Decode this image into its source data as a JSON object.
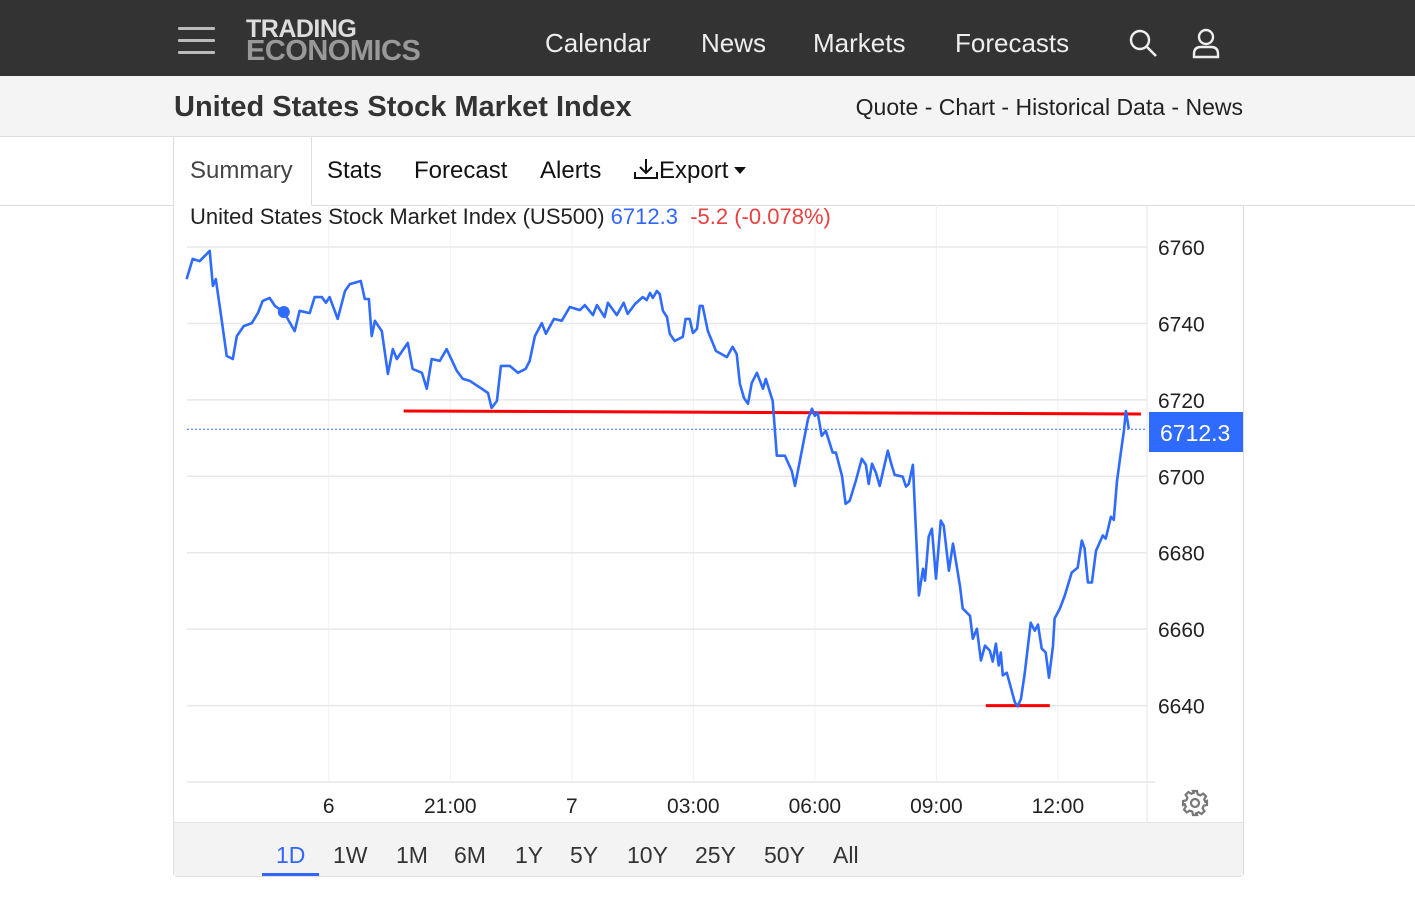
{
  "nav": {
    "logo_line1": "TRADING",
    "logo_line2": "ECONOMICS",
    "links": [
      "Calendar",
      "News",
      "Markets",
      "Forecasts"
    ]
  },
  "subheader": {
    "title": "United States Stock Market Index",
    "links": [
      "Quote",
      "Chart",
      "Historical Data",
      "News"
    ],
    "sep": " - "
  },
  "tabs": {
    "summary": "Summary",
    "stats": "Stats",
    "forecast": "Forecast",
    "alerts": "Alerts",
    "export": "Export"
  },
  "chart_header": {
    "name": "United States Stock Market Index (US500)",
    "price": "6712.3",
    "change": "-5.2",
    "change_pct": "(-0.078%)"
  },
  "last_price_label": "6712.3",
  "ranges": [
    "1D",
    "1W",
    "1M",
    "6M",
    "1Y",
    "5Y",
    "10Y",
    "25Y",
    "50Y",
    "All"
  ],
  "active_range": "1D",
  "colors": {
    "line": "#2f6bff",
    "trend": "#ff0000",
    "nav_bg": "#333333"
  },
  "chart_data": {
    "type": "line",
    "title": "United States Stock Market Index (US500)",
    "xlabel": "",
    "ylabel": "",
    "x_unit": "hours relative to tick '6'",
    "xlim": [
      -3.5,
      20.2
    ],
    "ylim": [
      6620,
      6771
    ],
    "grid": true,
    "y_ticks": [
      6640,
      6660,
      6680,
      6700,
      6720,
      6740,
      6760
    ],
    "x_ticks": [
      {
        "x": 0,
        "label": "6"
      },
      {
        "x": 3,
        "label": "21:00"
      },
      {
        "x": 6,
        "label": "7"
      },
      {
        "x": 9,
        "label": "03:00"
      },
      {
        "x": 12,
        "label": "06:00"
      },
      {
        "x": 15,
        "label": "09:00"
      },
      {
        "x": 18,
        "label": "12:00"
      }
    ],
    "last_value": 6712.3,
    "marker": {
      "x": -1.11,
      "y": 6743.0
    },
    "annotations": [
      {
        "type": "trendline",
        "from": [
          1.85,
          6717.1
        ],
        "to": [
          20.05,
          6716.3
        ]
      },
      {
        "type": "trendline",
        "from": [
          16.22,
          6640.0
        ],
        "to": [
          17.8,
          6640.0
        ]
      }
    ],
    "series": [
      {
        "name": "US500",
        "points": [
          [
            -3.51,
            6751.6
          ],
          [
            -3.36,
            6756.9
          ],
          [
            -3.19,
            6756.3
          ],
          [
            -2.94,
            6759.0
          ],
          [
            -2.86,
            6749.8
          ],
          [
            -2.79,
            6751.6
          ],
          [
            -2.64,
            6740.7
          ],
          [
            -2.52,
            6731.5
          ],
          [
            -2.37,
            6730.7
          ],
          [
            -2.27,
            6736.7
          ],
          [
            -2.1,
            6739.3
          ],
          [
            -1.9,
            6740.1
          ],
          [
            -1.75,
            6742.7
          ],
          [
            -1.63,
            6745.9
          ],
          [
            -1.46,
            6746.7
          ],
          [
            -1.33,
            6744.6
          ],
          [
            -1.11,
            6743.0
          ],
          [
            -0.84,
            6738.0
          ],
          [
            -0.72,
            6743.3
          ],
          [
            -0.47,
            6742.7
          ],
          [
            -0.35,
            6746.9
          ],
          [
            -0.17,
            6746.9
          ],
          [
            -0.07,
            6745.4
          ],
          [
            0.02,
            6746.9
          ],
          [
            0.22,
            6741.2
          ],
          [
            0.4,
            6748.5
          ],
          [
            0.52,
            6750.3
          ],
          [
            0.79,
            6751.1
          ],
          [
            0.89,
            6746.4
          ],
          [
            0.99,
            6746.4
          ],
          [
            1.06,
            6736.7
          ],
          [
            1.14,
            6740.7
          ],
          [
            1.31,
            6738.0
          ],
          [
            1.46,
            6726.8
          ],
          [
            1.58,
            6733.3
          ],
          [
            1.68,
            6730.7
          ],
          [
            1.95,
            6734.9
          ],
          [
            2.07,
            6728.1
          ],
          [
            2.3,
            6727.1
          ],
          [
            2.42,
            6722.9
          ],
          [
            2.54,
            6730.7
          ],
          [
            2.74,
            6730.2
          ],
          [
            2.91,
            6733.3
          ],
          [
            3.16,
            6727.6
          ],
          [
            3.31,
            6725.5
          ],
          [
            3.48,
            6725.0
          ],
          [
            3.78,
            6722.9
          ],
          [
            3.93,
            6721.8
          ],
          [
            4.02,
            6717.9
          ],
          [
            4.15,
            6719.7
          ],
          [
            4.25,
            6728.9
          ],
          [
            4.47,
            6728.9
          ],
          [
            4.67,
            6727.1
          ],
          [
            4.86,
            6728.1
          ],
          [
            4.96,
            6730.2
          ],
          [
            5.09,
            6736.7
          ],
          [
            5.26,
            6740.1
          ],
          [
            5.36,
            6737.3
          ],
          [
            5.56,
            6741.2
          ],
          [
            5.75,
            6740.7
          ],
          [
            5.95,
            6744.3
          ],
          [
            6.2,
            6743.5
          ],
          [
            6.32,
            6744.8
          ],
          [
            6.52,
            6742.2
          ],
          [
            6.62,
            6744.8
          ],
          [
            6.81,
            6741.7
          ],
          [
            6.89,
            6745.4
          ],
          [
            7.11,
            6742.2
          ],
          [
            7.28,
            6745.4
          ],
          [
            7.38,
            6742.5
          ],
          [
            7.56,
            6745.1
          ],
          [
            7.75,
            6746.9
          ],
          [
            7.85,
            6746.1
          ],
          [
            7.93,
            6748.0
          ],
          [
            8.0,
            6746.7
          ],
          [
            8.1,
            6748.5
          ],
          [
            8.17,
            6747.7
          ],
          [
            8.25,
            6743.3
          ],
          [
            8.35,
            6741.7
          ],
          [
            8.42,
            6737.3
          ],
          [
            8.54,
            6735.4
          ],
          [
            8.74,
            6736.5
          ],
          [
            8.81,
            6741.2
          ],
          [
            8.91,
            6741.2
          ],
          [
            8.99,
            6737.5
          ],
          [
            9.09,
            6738.6
          ],
          [
            9.16,
            6744.6
          ],
          [
            9.23,
            6744.6
          ],
          [
            9.36,
            6738.0
          ],
          [
            9.56,
            6732.8
          ],
          [
            9.83,
            6731.2
          ],
          [
            9.97,
            6733.9
          ],
          [
            10.07,
            6732.0
          ],
          [
            10.15,
            6724.2
          ],
          [
            10.25,
            6720.5
          ],
          [
            10.35,
            6719.0
          ],
          [
            10.44,
            6724.4
          ],
          [
            10.57,
            6727.1
          ],
          [
            10.72,
            6722.9
          ],
          [
            10.79,
            6725.5
          ],
          [
            10.96,
            6719.7
          ],
          [
            11.06,
            6705.4
          ],
          [
            11.26,
            6705.4
          ],
          [
            11.43,
            6701.4
          ],
          [
            11.51,
            6697.5
          ],
          [
            11.63,
            6704.1
          ],
          [
            11.83,
            6715.0
          ],
          [
            11.93,
            6717.7
          ],
          [
            12.0,
            6715.8
          ],
          [
            12.07,
            6716.6
          ],
          [
            12.17,
            6710.6
          ],
          [
            12.27,
            6711.9
          ],
          [
            12.44,
            6706.2
          ],
          [
            12.52,
            6706.2
          ],
          [
            12.67,
            6700.1
          ],
          [
            12.76,
            6692.8
          ],
          [
            12.86,
            6693.6
          ],
          [
            13.01,
            6698.8
          ],
          [
            13.16,
            6704.6
          ],
          [
            13.26,
            6703.0
          ],
          [
            13.33,
            6698.0
          ],
          [
            13.41,
            6703.3
          ],
          [
            13.51,
            6700.9
          ],
          [
            13.6,
            6697.5
          ],
          [
            13.8,
            6706.7
          ],
          [
            13.88,
            6703.5
          ],
          [
            13.97,
            6700.4
          ],
          [
            14.17,
            6699.9
          ],
          [
            14.25,
            6697.3
          ],
          [
            14.32,
            6698.0
          ],
          [
            14.42,
            6703.0
          ],
          [
            14.57,
            6668.8
          ],
          [
            14.67,
            6675.8
          ],
          [
            14.72,
            6672.7
          ],
          [
            14.81,
            6684.2
          ],
          [
            14.89,
            6686.3
          ],
          [
            14.99,
            6673.2
          ],
          [
            15.11,
            6688.4
          ],
          [
            15.18,
            6687.1
          ],
          [
            15.31,
            6675.3
          ],
          [
            15.41,
            6682.4
          ],
          [
            15.58,
            6671.4
          ],
          [
            15.65,
            6665.4
          ],
          [
            15.83,
            6663.5
          ],
          [
            15.9,
            6657.5
          ],
          [
            16.0,
            6660.1
          ],
          [
            16.1,
            6651.8
          ],
          [
            16.2,
            6655.7
          ],
          [
            16.32,
            6654.4
          ],
          [
            16.39,
            6651.5
          ],
          [
            16.47,
            6656.2
          ],
          [
            16.54,
            6650.5
          ],
          [
            16.59,
            6653.9
          ],
          [
            16.64,
            6647.9
          ],
          [
            16.74,
            6648.6
          ],
          [
            16.94,
            6640.8
          ],
          [
            17.01,
            6639.8
          ],
          [
            17.09,
            6641.8
          ],
          [
            17.18,
            6648.4
          ],
          [
            17.33,
            6661.7
          ],
          [
            17.43,
            6659.6
          ],
          [
            17.51,
            6661.2
          ],
          [
            17.6,
            6654.9
          ],
          [
            17.7,
            6653.9
          ],
          [
            17.78,
            6647.3
          ],
          [
            17.88,
            6655.7
          ],
          [
            17.92,
            6662.8
          ],
          [
            18.05,
            6665.4
          ],
          [
            18.17,
            6668.8
          ],
          [
            18.34,
            6674.8
          ],
          [
            18.49,
            6676.1
          ],
          [
            18.59,
            6683.2
          ],
          [
            18.66,
            6681.1
          ],
          [
            18.74,
            6672.2
          ],
          [
            18.84,
            6672.2
          ],
          [
            18.94,
            6680.5
          ],
          [
            19.11,
            6684.5
          ],
          [
            19.18,
            6683.7
          ],
          [
            19.23,
            6685.8
          ],
          [
            19.31,
            6689.4
          ],
          [
            19.38,
            6688.6
          ],
          [
            19.46,
            6698.8
          ],
          [
            19.56,
            6706.7
          ],
          [
            19.63,
            6711.9
          ],
          [
            19.68,
            6717.1
          ],
          [
            19.75,
            6712.4
          ]
        ]
      }
    ]
  }
}
